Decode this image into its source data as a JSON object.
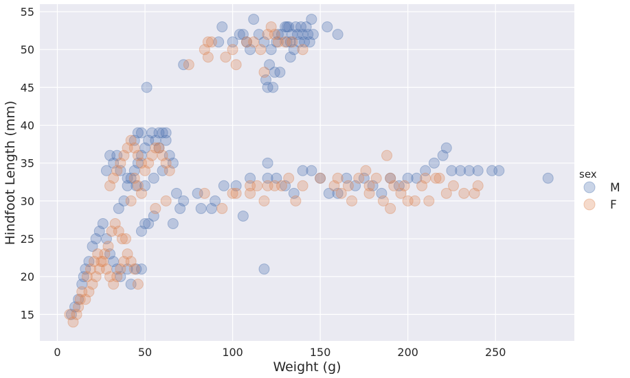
{
  "chart_data": {
    "type": "scatter",
    "title": "",
    "xlabel": "Weight (g)",
    "ylabel": "Hindfoot Length (mm)",
    "xlim": [
      -10,
      295
    ],
    "ylim": [
      11.5,
      56
    ],
    "xticks": [
      0,
      50,
      100,
      150,
      200,
      250
    ],
    "yticks": [
      15,
      20,
      25,
      30,
      35,
      40,
      45,
      50,
      55
    ],
    "grid": true,
    "background": "#eaeaf2",
    "legend": {
      "title": "sex",
      "placement": "right"
    },
    "series": [
      {
        "name": "M",
        "color": "#4c72b0",
        "alpha": 0.3,
        "points": [
          [
            8,
            15
          ],
          [
            10,
            16
          ],
          [
            12,
            17
          ],
          [
            14,
            19
          ],
          [
            15,
            20
          ],
          [
            16,
            21
          ],
          [
            18,
            22
          ],
          [
            20,
            24
          ],
          [
            22,
            25
          ],
          [
            24,
            26
          ],
          [
            26,
            27
          ],
          [
            28,
            25
          ],
          [
            30,
            23
          ],
          [
            32,
            22
          ],
          [
            34,
            21
          ],
          [
            36,
            20
          ],
          [
            40,
            21
          ],
          [
            45,
            21
          ],
          [
            48,
            21
          ],
          [
            42,
            19
          ],
          [
            50,
            27
          ],
          [
            52,
            27
          ],
          [
            55,
            28
          ],
          [
            48,
            26
          ],
          [
            35,
            29
          ],
          [
            38,
            30
          ],
          [
            40,
            32
          ],
          [
            42,
            33
          ],
          [
            44,
            34
          ],
          [
            46,
            35
          ],
          [
            48,
            36
          ],
          [
            50,
            37
          ],
          [
            52,
            38
          ],
          [
            54,
            39
          ],
          [
            56,
            38
          ],
          [
            58,
            37
          ],
          [
            60,
            39
          ],
          [
            62,
            38
          ],
          [
            64,
            36
          ],
          [
            66,
            35
          ],
          [
            60,
            34
          ],
          [
            55,
            33
          ],
          [
            50,
            32
          ],
          [
            45,
            32
          ],
          [
            40,
            33
          ],
          [
            36,
            34
          ],
          [
            34,
            36
          ],
          [
            32,
            35
          ],
          [
            30,
            36
          ],
          [
            28,
            34
          ],
          [
            48,
            39
          ],
          [
            46,
            39
          ],
          [
            44,
            38
          ],
          [
            58,
            39
          ],
          [
            62,
            39
          ],
          [
            51,
            45
          ],
          [
            66,
            27
          ],
          [
            68,
            31
          ],
          [
            70,
            29
          ],
          [
            72,
            30
          ],
          [
            80,
            31
          ],
          [
            82,
            29
          ],
          [
            88,
            29
          ],
          [
            90,
            30
          ],
          [
            95,
            32
          ],
          [
            102,
            32
          ],
          [
            106,
            28
          ],
          [
            110,
            33
          ],
          [
            120,
            33
          ],
          [
            125,
            33
          ],
          [
            130,
            32
          ],
          [
            135,
            31
          ],
          [
            140,
            34
          ],
          [
            145,
            34
          ],
          [
            150,
            33
          ],
          [
            155,
            31
          ],
          [
            160,
            31
          ],
          [
            165,
            33
          ],
          [
            170,
            32
          ],
          [
            175,
            33
          ],
          [
            180,
            32
          ],
          [
            185,
            31
          ],
          [
            190,
            33
          ],
          [
            195,
            32
          ],
          [
            200,
            33
          ],
          [
            205,
            33
          ],
          [
            210,
            34
          ],
          [
            215,
            35
          ],
          [
            220,
            36
          ],
          [
            222,
            37
          ],
          [
            225,
            34
          ],
          [
            230,
            34
          ],
          [
            235,
            34
          ],
          [
            240,
            34
          ],
          [
            248,
            34
          ],
          [
            252,
            34
          ],
          [
            280,
            33
          ],
          [
            118,
            21
          ],
          [
            120,
            35
          ],
          [
            72,
            48
          ],
          [
            92,
            51
          ],
          [
            94,
            53
          ],
          [
            100,
            51
          ],
          [
            104,
            52
          ],
          [
            106,
            52
          ],
          [
            108,
            51
          ],
          [
            110,
            50
          ],
          [
            112,
            54
          ],
          [
            115,
            52
          ],
          [
            118,
            51
          ],
          [
            119,
            46
          ],
          [
            120,
            45
          ],
          [
            121,
            48
          ],
          [
            122,
            50
          ],
          [
            123,
            45
          ],
          [
            124,
            47
          ],
          [
            125,
            51
          ],
          [
            126,
            52
          ],
          [
            127,
            47
          ],
          [
            128,
            52
          ],
          [
            130,
            53
          ],
          [
            131,
            51
          ],
          [
            132,
            53
          ],
          [
            133,
            51
          ],
          [
            134,
            52
          ],
          [
            135,
            50
          ],
          [
            136,
            53
          ],
          [
            137,
            52
          ],
          [
            138,
            51
          ],
          [
            139,
            53
          ],
          [
            140,
            52
          ],
          [
            141,
            51
          ],
          [
            142,
            53
          ],
          [
            143,
            52
          ],
          [
            144,
            51
          ],
          [
            145,
            54
          ],
          [
            146,
            52
          ],
          [
            154,
            53
          ],
          [
            160,
            52
          ],
          [
            131,
            53
          ],
          [
            133,
            49
          ]
        ]
      },
      {
        "name": "F",
        "color": "#dd8452",
        "alpha": 0.3,
        "points": [
          [
            7,
            15
          ],
          [
            9,
            14
          ],
          [
            11,
            15
          ],
          [
            12,
            16
          ],
          [
            13,
            17
          ],
          [
            14,
            18
          ],
          [
            16,
            17
          ],
          [
            18,
            18
          ],
          [
            20,
            19
          ],
          [
            22,
            20
          ],
          [
            24,
            21
          ],
          [
            26,
            22
          ],
          [
            28,
            21
          ],
          [
            30,
            20
          ],
          [
            32,
            19
          ],
          [
            34,
            20
          ],
          [
            36,
            21
          ],
          [
            38,
            22
          ],
          [
            40,
            23
          ],
          [
            42,
            22
          ],
          [
            44,
            21
          ],
          [
            46,
            19
          ],
          [
            17,
            20
          ],
          [
            19,
            21
          ],
          [
            21,
            22
          ],
          [
            23,
            23
          ],
          [
            25,
            22
          ],
          [
            27,
            23
          ],
          [
            29,
            24
          ],
          [
            31,
            26
          ],
          [
            33,
            27
          ],
          [
            35,
            26
          ],
          [
            37,
            25
          ],
          [
            39,
            25
          ],
          [
            30,
            32
          ],
          [
            32,
            33
          ],
          [
            34,
            34
          ],
          [
            36,
            35
          ],
          [
            38,
            36
          ],
          [
            40,
            37
          ],
          [
            42,
            38
          ],
          [
            44,
            37
          ],
          [
            46,
            36
          ],
          [
            48,
            35
          ],
          [
            50,
            34
          ],
          [
            52,
            35
          ],
          [
            54,
            36
          ],
          [
            56,
            37
          ],
          [
            58,
            37
          ],
          [
            60,
            36
          ],
          [
            62,
            35
          ],
          [
            64,
            34
          ],
          [
            44,
            33
          ],
          [
            46,
            32
          ],
          [
            48,
            31
          ],
          [
            42,
            30
          ],
          [
            56,
            29
          ],
          [
            62,
            30
          ],
          [
            75,
            48
          ],
          [
            86,
            51
          ],
          [
            88,
            51
          ],
          [
            84,
            50
          ],
          [
            86,
            49
          ],
          [
            96,
            49
          ],
          [
            100,
            50
          ],
          [
            102,
            48
          ],
          [
            108,
            51
          ],
          [
            112,
            51
          ],
          [
            116,
            50
          ],
          [
            118,
            47
          ],
          [
            120,
            52
          ],
          [
            122,
            53
          ],
          [
            124,
            52
          ],
          [
            126,
            51
          ],
          [
            130,
            51
          ],
          [
            134,
            51
          ],
          [
            140,
            50
          ],
          [
            102,
            31
          ],
          [
            110,
            32
          ],
          [
            114,
            32
          ],
          [
            120,
            32
          ],
          [
            124,
            32
          ],
          [
            128,
            32
          ],
          [
            132,
            33
          ],
          [
            136,
            30
          ],
          [
            140,
            32
          ],
          [
            150,
            33
          ],
          [
            158,
            32
          ],
          [
            162,
            31
          ],
          [
            166,
            32
          ],
          [
            168,
            30
          ],
          [
            172,
            33
          ],
          [
            176,
            34
          ],
          [
            178,
            32
          ],
          [
            182,
            33
          ],
          [
            186,
            30
          ],
          [
            188,
            36
          ],
          [
            190,
            33
          ],
          [
            192,
            32
          ],
          [
            196,
            31
          ],
          [
            200,
            30
          ],
          [
            204,
            30
          ],
          [
            208,
            32
          ],
          [
            212,
            30
          ],
          [
            216,
            33
          ],
          [
            218,
            33
          ],
          [
            222,
            31
          ],
          [
            226,
            32
          ],
          [
            232,
            31
          ],
          [
            238,
            31
          ],
          [
            240,
            32
          ],
          [
            94,
            29
          ],
          [
            100,
            31
          ],
          [
            110,
            31
          ],
          [
            118,
            30
          ],
          [
            160,
            33
          ],
          [
            178,
            31
          ],
          [
            198,
            32
          ],
          [
            210,
            33
          ],
          [
            190,
            29
          ],
          [
            84,
            31
          ]
        ]
      }
    ]
  }
}
